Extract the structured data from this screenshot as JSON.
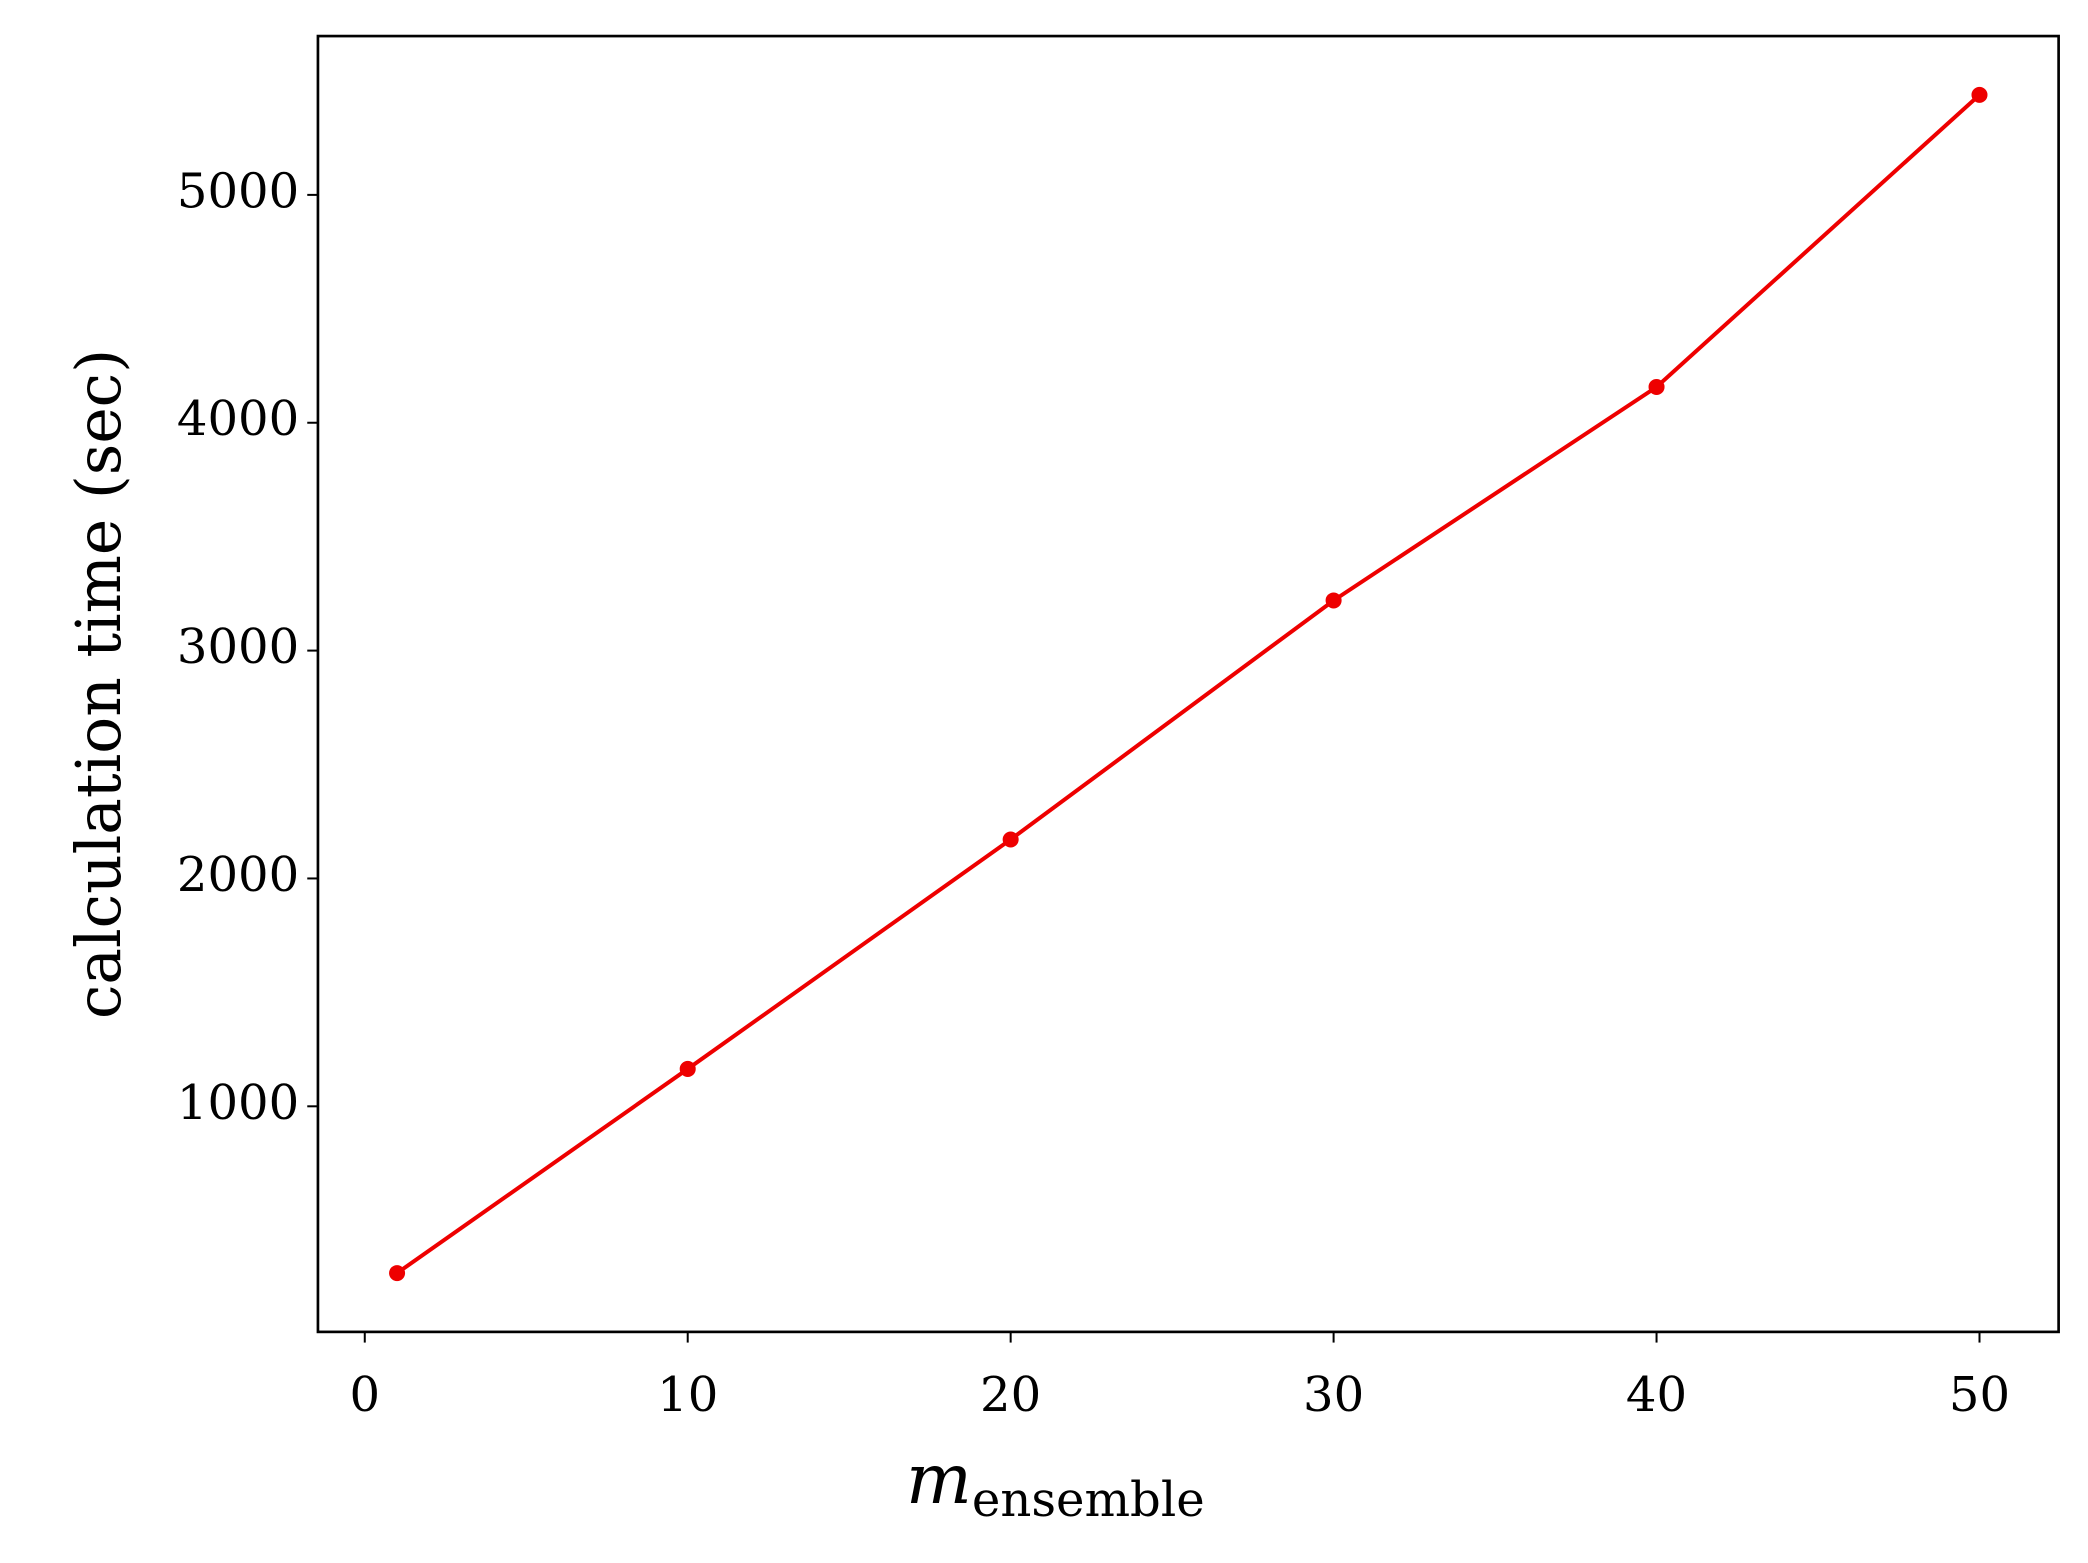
{
  "chart_data": {
    "type": "line",
    "x_label": {
      "main": "m",
      "subscript": "ensemble"
    },
    "y_label": "calculation time (sec)",
    "x": [
      1,
      10,
      20,
      30,
      40,
      50
    ],
    "series": [
      {
        "color": "#ee0000",
        "values": [
          268,
          1164,
          2171,
          3220,
          4157,
          5439
        ]
      }
    ],
    "xlim": [
      -1.45,
      52.45
    ],
    "xticks": [
      0,
      10,
      20,
      30,
      40,
      50
    ],
    "ylim": [
      10,
      5697
    ],
    "yticks": [
      1000,
      2000,
      3000,
      4000,
      5000
    ],
    "grid": false
  }
}
